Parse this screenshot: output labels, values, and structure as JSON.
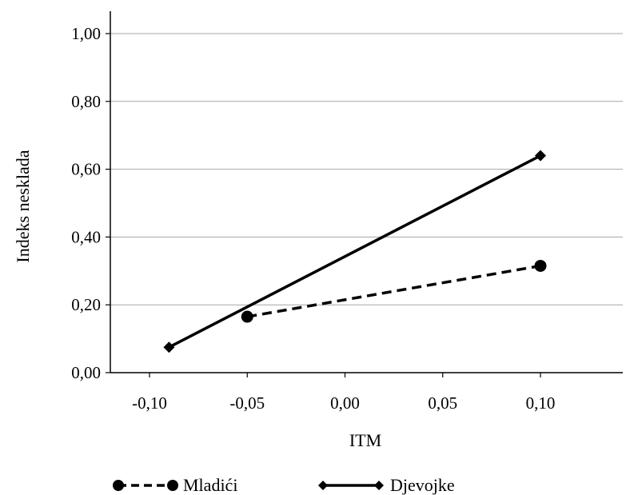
{
  "chart_data": {
    "type": "line",
    "title": "",
    "xlabel": "ITM",
    "ylabel": "Indeks nesklada",
    "xlim": [
      -0.12,
      0.14
    ],
    "ylim": [
      0,
      1.0
    ],
    "x_ticks": [
      "-0,10",
      "-0,05",
      "0,00",
      "0,05",
      "0,10"
    ],
    "y_ticks": [
      "0,00",
      "0,20",
      "0,40",
      "0,60",
      "0,80",
      "1,00"
    ],
    "grid": "horizontal",
    "legend_position": "bottom",
    "series": [
      {
        "name": "Mladići",
        "style": "dashed",
        "marker": "circle",
        "color": "#000000",
        "points": [
          {
            "x": -0.05,
            "y": 0.165
          },
          {
            "x": 0.1,
            "y": 0.315
          }
        ]
      },
      {
        "name": "Djevojke",
        "style": "solid",
        "marker": "diamond",
        "color": "#000000",
        "points": [
          {
            "x": -0.09,
            "y": 0.075
          },
          {
            "x": 0.1,
            "y": 0.64
          }
        ]
      }
    ]
  }
}
